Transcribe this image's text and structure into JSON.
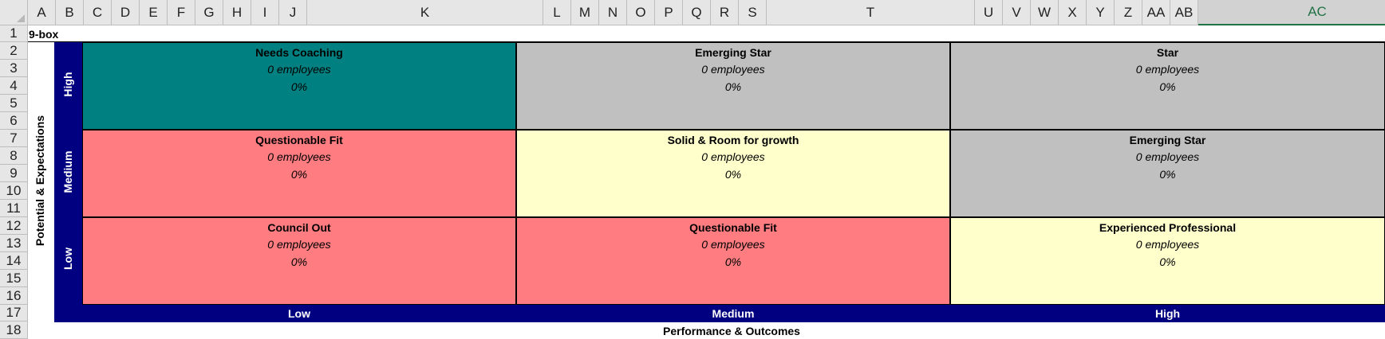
{
  "columns": [
    "A",
    "B",
    "C",
    "D",
    "E",
    "F",
    "G",
    "H",
    "I",
    "J",
    "K",
    "L",
    "M",
    "N",
    "O",
    "P",
    "Q",
    "R",
    "S",
    "T",
    "U",
    "V",
    "W",
    "X",
    "Y",
    "Z",
    "AA",
    "AB",
    "AC"
  ],
  "rows": [
    "1",
    "2",
    "3",
    "4",
    "5",
    "6",
    "7",
    "8",
    "9",
    "10",
    "11",
    "12",
    "13",
    "14",
    "15",
    "16",
    "17",
    "18"
  ],
  "sheet_title": "9-box",
  "y_axis_title": "Potential & Expectations",
  "x_axis_title": "Performance & Outcomes",
  "y_levels": [
    "High",
    "Medium",
    "Low"
  ],
  "x_levels": [
    "Low",
    "Medium",
    "High"
  ],
  "colors": {
    "teal": "#008080",
    "gray": "#c0c0c0",
    "red": "#ff7c80",
    "yellow": "#ffffcc",
    "navy": "#000080"
  },
  "boxes": [
    {
      "title": "Needs Coaching",
      "employees": "0 employees",
      "percent": "0%",
      "color": "#008080"
    },
    {
      "title": "Emerging Star",
      "employees": "0 employees",
      "percent": "0%",
      "color": "#c0c0c0"
    },
    {
      "title": "Star",
      "employees": "0 employees",
      "percent": "0%",
      "color": "#c0c0c0"
    },
    {
      "title": "Questionable Fit",
      "employees": "0 employees",
      "percent": "0%",
      "color": "#ff7c80"
    },
    {
      "title": "Solid & Room for growth",
      "employees": "0 employees",
      "percent": "0%",
      "color": "#ffffcc"
    },
    {
      "title": "Emerging Star",
      "employees": "0 employees",
      "percent": "0%",
      "color": "#c0c0c0"
    },
    {
      "title": "Council Out",
      "employees": "0 employees",
      "percent": "0%",
      "color": "#ff7c80"
    },
    {
      "title": "Questionable Fit",
      "employees": "0 employees",
      "percent": "0%",
      "color": "#ff7c80"
    },
    {
      "title": "Experienced Professional",
      "employees": "0 employees",
      "percent": "0%",
      "color": "#ffffcc"
    }
  ]
}
